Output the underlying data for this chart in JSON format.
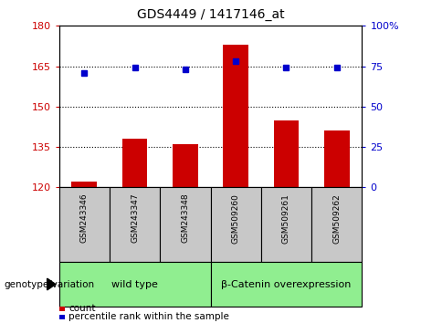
{
  "title": "GDS4449 / 1417146_at",
  "categories": [
    "GSM243346",
    "GSM243347",
    "GSM243348",
    "GSM509260",
    "GSM509261",
    "GSM509262"
  ],
  "bar_values": [
    122,
    138,
    136,
    173,
    145,
    141
  ],
  "dot_values": [
    71,
    74,
    73,
    78,
    74,
    74
  ],
  "bar_color": "#cc0000",
  "dot_color": "#0000cc",
  "ylim_left": [
    120,
    180
  ],
  "ylim_right": [
    0,
    100
  ],
  "yticks_left": [
    120,
    135,
    150,
    165,
    180
  ],
  "yticks_right": [
    0,
    25,
    50,
    75,
    100
  ],
  "grid_lines": [
    135,
    150,
    165
  ],
  "groups": [
    {
      "label": "wild type",
      "cols": [
        0,
        1,
        2
      ]
    },
    {
      "label": "β-Catenin overexpression",
      "cols": [
        3,
        4,
        5
      ]
    }
  ],
  "group_label_prefix": "genotype/variation",
  "legend_count_label": "count",
  "legend_percentile_label": "percentile rank within the sample",
  "bar_width": 0.5,
  "fig_width": 4.61,
  "fig_height": 3.54,
  "dpi": 100,
  "bg_color": "#ffffff",
  "plot_bg_color": "#ffffff",
  "tick_label_color_left": "#cc0000",
  "tick_label_color_right": "#0000cc",
  "xticklabel_bg": "#c8c8c8",
  "group_box_color": "#90ee90",
  "group_box_border": "#000000"
}
